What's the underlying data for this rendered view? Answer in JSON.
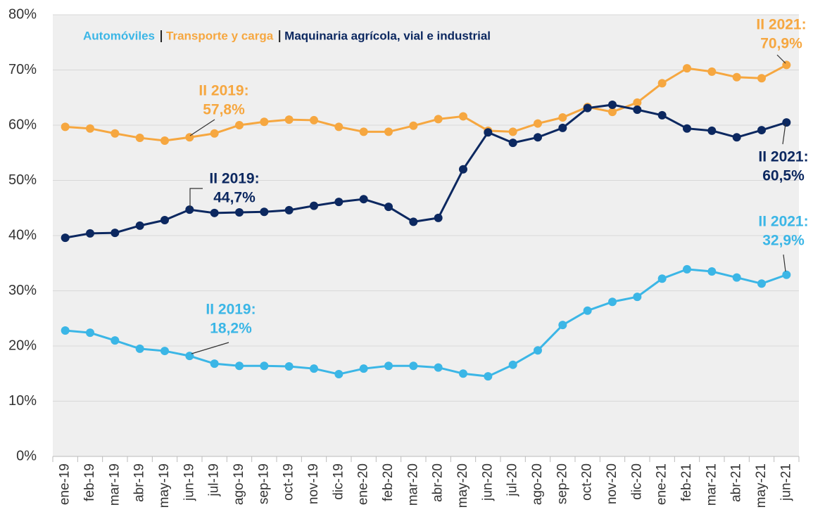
{
  "chart_data": {
    "type": "line",
    "categories": [
      "ene-19",
      "feb-19",
      "mar-19",
      "abr-19",
      "may-19",
      "jun-19",
      "jul-19",
      "ago-19",
      "sep-19",
      "oct-19",
      "nov-19",
      "dic-19",
      "ene-20",
      "feb-20",
      "mar-20",
      "abr-20",
      "may-20",
      "jun-20",
      "jul-20",
      "ago-20",
      "sep-20",
      "oct-20",
      "nov-20",
      "dic-20",
      "ene-21",
      "feb-21",
      "mar-21",
      "abr-21",
      "may-21",
      "jun-21"
    ],
    "series": [
      {
        "name": "Automóviles",
        "color": "#3bb6e6",
        "values": [
          22.8,
          22.4,
          21.0,
          19.5,
          19.1,
          18.2,
          16.8,
          16.4,
          16.4,
          16.3,
          15.9,
          14.9,
          15.9,
          16.4,
          16.4,
          16.1,
          15.0,
          14.5,
          16.6,
          19.2,
          23.8,
          26.4,
          28.0,
          28.9,
          32.2,
          33.9,
          33.5,
          32.4,
          31.3,
          32.9
        ]
      },
      {
        "name": "Transporte y carga",
        "color": "#f6a740",
        "values": [
          59.7,
          59.4,
          58.5,
          57.7,
          57.2,
          57.8,
          58.5,
          60.0,
          60.6,
          61.0,
          60.9,
          59.7,
          58.8,
          58.8,
          59.9,
          61.1,
          61.6,
          59.0,
          58.8,
          60.3,
          61.4,
          63.3,
          62.4,
          64.1,
          67.6,
          70.3,
          69.7,
          68.7,
          68.5,
          70.9
        ]
      },
      {
        "name": "Maquinaria agrícola, vial e industrial",
        "color": "#0c2860",
        "values": [
          39.6,
          40.4,
          40.5,
          41.8,
          42.8,
          44.7,
          44.1,
          44.2,
          44.3,
          44.6,
          45.4,
          46.1,
          46.6,
          45.2,
          42.5,
          43.2,
          52.0,
          58.7,
          56.8,
          57.8,
          59.5,
          63.1,
          63.7,
          62.8,
          61.8,
          59.4,
          59.0,
          57.8,
          59.1,
          60.5
        ]
      }
    ],
    "ylim": [
      0,
      80
    ],
    "yticks": [
      {
        "value": 0,
        "label": "0%"
      },
      {
        "value": 10,
        "label": "10%"
      },
      {
        "value": 20,
        "label": "20%"
      },
      {
        "value": 30,
        "label": "30%"
      },
      {
        "value": 40,
        "label": "40%"
      },
      {
        "value": 50,
        "label": "50%"
      },
      {
        "value": 60,
        "label": "60%"
      },
      {
        "value": 70,
        "label": "70%"
      },
      {
        "value": 80,
        "label": "80%"
      }
    ],
    "grid": true,
    "annotations": [
      {
        "lines": [
          "II 2019:",
          "57,8%"
        ],
        "color": "#f6a740"
      },
      {
        "lines": [
          "II 2019:",
          "44,7%"
        ],
        "color": "#0c2860"
      },
      {
        "lines": [
          "II 2019:",
          "18,2%"
        ],
        "color": "#3bb6e6"
      },
      {
        "lines": [
          "II 2021:",
          "70,9%"
        ],
        "color": "#f6a740"
      },
      {
        "lines": [
          "II 2021:",
          "60,5%"
        ],
        "color": "#0c2860"
      },
      {
        "lines": [
          "II 2021:",
          "32,9%"
        ],
        "color": "#3bb6e6"
      }
    ]
  }
}
